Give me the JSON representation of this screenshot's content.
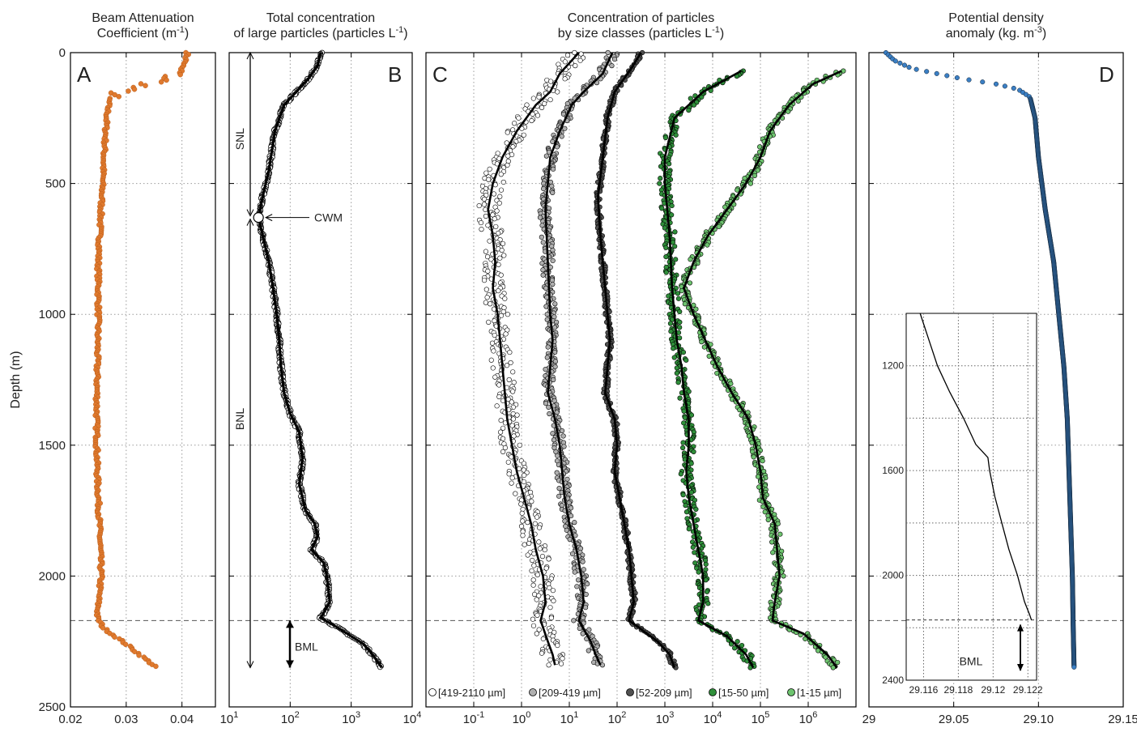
{
  "depth_axis": {
    "label": "Depth (m)",
    "min": 0,
    "max": 2500,
    "ticks": [
      "0",
      "500",
      "1000",
      "1500",
      "2000",
      "2500"
    ]
  },
  "bml_depth": 2170,
  "chart_data": [
    {
      "id": "A",
      "type": "scatter",
      "title": [
        "Beam Attenuation",
        "Coefficient (m",
        "-1",
        ")"
      ],
      "panel_label": "A",
      "xlim": [
        0.02,
        0.046
      ],
      "xscale": "linear",
      "xticks": [
        "0.02",
        "0.03",
        "0.04"
      ],
      "color": "#e07a2e",
      "profile": [
        [
          0,
          0.041
        ],
        [
          40,
          0.0405
        ],
        [
          80,
          0.039
        ],
        [
          110,
          0.036
        ],
        [
          140,
          0.03
        ],
        [
          170,
          0.027
        ],
        [
          250,
          0.0265
        ],
        [
          400,
          0.026
        ],
        [
          600,
          0.0255
        ],
        [
          800,
          0.025
        ],
        [
          1000,
          0.025
        ],
        [
          1200,
          0.0248
        ],
        [
          1400,
          0.0247
        ],
        [
          1600,
          0.0248
        ],
        [
          1800,
          0.0252
        ],
        [
          2000,
          0.0255
        ],
        [
          2100,
          0.025
        ],
        [
          2160,
          0.0248
        ],
        [
          2200,
          0.026
        ],
        [
          2260,
          0.03
        ],
        [
          2310,
          0.033
        ],
        [
          2350,
          0.0355
        ]
      ]
    },
    {
      "id": "B",
      "type": "line",
      "title": [
        "Total concentration",
        "of large particles (particles L",
        "-1",
        ")"
      ],
      "panel_label": "B",
      "xlim": [
        1,
        4
      ],
      "xscale": "log10",
      "xticks": [
        "1",
        "2",
        "3",
        "4"
      ],
      "color": "#000000",
      "profile": [
        [
          0,
          2.5
        ],
        [
          50,
          2.45
        ],
        [
          100,
          2.3
        ],
        [
          150,
          2.1
        ],
        [
          200,
          1.9
        ],
        [
          300,
          1.75
        ],
        [
          450,
          1.65
        ],
        [
          550,
          1.55
        ],
        [
          630,
          1.48
        ],
        [
          700,
          1.55
        ],
        [
          800,
          1.65
        ],
        [
          900,
          1.72
        ],
        [
          1000,
          1.78
        ],
        [
          1100,
          1.82
        ],
        [
          1200,
          1.85
        ],
        [
          1300,
          1.9
        ],
        [
          1380,
          2.0
        ],
        [
          1450,
          2.15
        ],
        [
          1550,
          2.2
        ],
        [
          1650,
          2.15
        ],
        [
          1750,
          2.25
        ],
        [
          1800,
          2.4
        ],
        [
          1850,
          2.45
        ],
        [
          1900,
          2.35
        ],
        [
          1950,
          2.55
        ],
        [
          2000,
          2.6
        ],
        [
          2100,
          2.65
        ],
        [
          2160,
          2.5
        ],
        [
          2200,
          2.8
        ],
        [
          2260,
          3.2
        ],
        [
          2300,
          3.35
        ],
        [
          2350,
          3.5
        ]
      ],
      "annotations": {
        "cwm": {
          "label": "CWM",
          "depth": 630,
          "value": 1.48
        },
        "layers": [
          {
            "label": "SNL",
            "from": 0,
            "to": 630
          },
          {
            "label": "BNL",
            "from": 630,
            "to": 2350
          },
          {
            "label": "BML",
            "from": 2170,
            "to": 2350
          }
        ]
      }
    },
    {
      "id": "C",
      "type": "line",
      "title": [
        "Concentration of particles",
        "by size classes (particles L",
        "-1",
        ")"
      ],
      "panel_label": "C",
      "xlim": [
        -2,
        7
      ],
      "xscale": "log10",
      "xticks": [
        "-1",
        "0",
        "1",
        "2",
        "3",
        "4",
        "5",
        "6"
      ],
      "series": [
        {
          "name": "[419-2110 µm]",
          "fill": "#ffffff",
          "profile": [
            [
              0,
              1.2
            ],
            [
              80,
              0.8
            ],
            [
              150,
              0.6
            ],
            [
              200,
              0.3
            ],
            [
              300,
              -0.1
            ],
            [
              400,
              -0.4
            ],
            [
              500,
              -0.6
            ],
            [
              600,
              -0.7
            ],
            [
              700,
              -0.6
            ],
            [
              800,
              -0.55
            ],
            [
              900,
              -0.6
            ],
            [
              1000,
              -0.5
            ],
            [
              1100,
              -0.45
            ],
            [
              1200,
              -0.4
            ],
            [
              1300,
              -0.35
            ],
            [
              1400,
              -0.3
            ],
            [
              1500,
              -0.2
            ],
            [
              1600,
              -0.1
            ],
            [
              1700,
              0.05
            ],
            [
              1800,
              0.2
            ],
            [
              1900,
              0.3
            ],
            [
              2000,
              0.45
            ],
            [
              2100,
              0.5
            ],
            [
              2170,
              0.4
            ],
            [
              2250,
              0.55
            ],
            [
              2300,
              0.65
            ],
            [
              2340,
              0.7
            ]
          ]
        },
        {
          "name": "[209-419 µm]",
          "fill": "#b0b0b0",
          "profile": [
            [
              0,
              1.9
            ],
            [
              80,
              1.7
            ],
            [
              150,
              1.3
            ],
            [
              200,
              1.05
            ],
            [
              300,
              0.8
            ],
            [
              400,
              0.6
            ],
            [
              500,
              0.55
            ],
            [
              600,
              0.5
            ],
            [
              800,
              0.55
            ],
            [
              1000,
              0.6
            ],
            [
              1100,
              0.65
            ],
            [
              1200,
              0.6
            ],
            [
              1300,
              0.55
            ],
            [
              1400,
              0.7
            ],
            [
              1500,
              0.8
            ],
            [
              1600,
              0.85
            ],
            [
              1700,
              0.9
            ],
            [
              1800,
              1.0
            ],
            [
              1900,
              1.15
            ],
            [
              2000,
              1.25
            ],
            [
              2100,
              1.3
            ],
            [
              2170,
              1.2
            ],
            [
              2250,
              1.45
            ],
            [
              2300,
              1.55
            ],
            [
              2340,
              1.65
            ]
          ]
        },
        {
          "name": "[52-209 µm]",
          "fill": "#505050",
          "profile": [
            [
              0,
              2.5
            ],
            [
              60,
              2.3
            ],
            [
              150,
              1.95
            ],
            [
              250,
              1.8
            ],
            [
              400,
              1.7
            ],
            [
              550,
              1.6
            ],
            [
              700,
              1.65
            ],
            [
              900,
              1.75
            ],
            [
              1000,
              1.8
            ],
            [
              1100,
              1.85
            ],
            [
              1200,
              1.8
            ],
            [
              1300,
              1.75
            ],
            [
              1400,
              1.95
            ],
            [
              1500,
              2.0
            ],
            [
              1600,
              1.95
            ],
            [
              1700,
              2.05
            ],
            [
              1800,
              2.15
            ],
            [
              1900,
              2.25
            ],
            [
              2000,
              2.3
            ],
            [
              2100,
              2.35
            ],
            [
              2170,
              2.25
            ],
            [
              2250,
              2.85
            ],
            [
              2300,
              3.1
            ],
            [
              2350,
              3.2
            ]
          ]
        },
        {
          "name": "[15-50 µm]",
          "fill": "#2f8f3a",
          "profile": [
            [
              70,
              4.6
            ],
            [
              150,
              3.8
            ],
            [
              250,
              3.2
            ],
            [
              400,
              3.0
            ],
            [
              500,
              3.0
            ],
            [
              700,
              3.1
            ],
            [
              900,
              3.15
            ],
            [
              1000,
              3.2
            ],
            [
              1100,
              3.25
            ],
            [
              1200,
              3.35
            ],
            [
              1300,
              3.4
            ],
            [
              1400,
              3.5
            ],
            [
              1500,
              3.5
            ],
            [
              1600,
              3.45
            ],
            [
              1700,
              3.5
            ],
            [
              1800,
              3.6
            ],
            [
              1900,
              3.7
            ],
            [
              2000,
              3.8
            ],
            [
              2100,
              3.8
            ],
            [
              2170,
              3.7
            ],
            [
              2230,
              4.3
            ],
            [
              2300,
              4.7
            ],
            [
              2350,
              4.85
            ]
          ]
        },
        {
          "name": "[1-15 µm]",
          "fill": "#6ec46f",
          "profile": [
            [
              70,
              6.7
            ],
            [
              120,
              6.1
            ],
            [
              200,
              5.6
            ],
            [
              300,
              5.2
            ],
            [
              400,
              5.0
            ],
            [
              500,
              4.7
            ],
            [
              600,
              4.3
            ],
            [
              700,
              3.9
            ],
            [
              800,
              3.6
            ],
            [
              900,
              3.4
            ],
            [
              1000,
              3.6
            ],
            [
              1100,
              3.85
            ],
            [
              1200,
              4.1
            ],
            [
              1300,
              4.4
            ],
            [
              1400,
              4.75
            ],
            [
              1500,
              4.9
            ],
            [
              1600,
              5.0
            ],
            [
              1700,
              5.05
            ],
            [
              1800,
              5.3
            ],
            [
              1900,
              5.35
            ],
            [
              2000,
              5.4
            ],
            [
              2100,
              5.3
            ],
            [
              2170,
              5.25
            ],
            [
              2220,
              5.9
            ],
            [
              2300,
              6.4
            ],
            [
              2350,
              6.6
            ]
          ]
        }
      ]
    },
    {
      "id": "D",
      "type": "scatter",
      "title": [
        "Potential density",
        "anomaly (kg. m",
        "-3",
        ")"
      ],
      "panel_label": "D",
      "xlim": [
        29.0,
        29.15
      ],
      "xscale": "linear",
      "xticks": [
        "29",
        "29.05",
        "29.10",
        "29.15"
      ],
      "color": "#2e6fb0",
      "profile": [
        [
          0,
          29.01
        ],
        [
          30,
          29.015
        ],
        [
          60,
          29.025
        ],
        [
          80,
          29.04
        ],
        [
          100,
          29.055
        ],
        [
          120,
          29.075
        ],
        [
          140,
          29.088
        ],
        [
          170,
          29.095
        ],
        [
          250,
          29.098
        ],
        [
          400,
          29.1
        ],
        [
          600,
          29.104
        ],
        [
          800,
          29.109
        ],
        [
          1000,
          29.112
        ],
        [
          1200,
          29.115
        ],
        [
          1400,
          29.117
        ],
        [
          1600,
          29.118
        ],
        [
          1800,
          29.119
        ],
        [
          2000,
          29.12
        ],
        [
          2200,
          29.1205
        ],
        [
          2350,
          29.121
        ]
      ],
      "inset": {
        "xlim": [
          29.115,
          29.1225
        ],
        "ylim": [
          1000,
          2400
        ],
        "xticks": [
          "29.116",
          "29.118",
          "29.12",
          "29.122"
        ],
        "yticks": [
          "1200",
          "1600",
          "2000",
          "2400"
        ],
        "label": "BML",
        "bml_depth": 2170,
        "profile": [
          [
            1000,
            29.1158
          ],
          [
            1100,
            29.1163
          ],
          [
            1200,
            29.1168
          ],
          [
            1300,
            29.1175
          ],
          [
            1400,
            29.1183
          ],
          [
            1500,
            29.119
          ],
          [
            1550,
            29.1197
          ],
          [
            1600,
            29.1198
          ],
          [
            1700,
            29.1201
          ],
          [
            1800,
            29.1205
          ],
          [
            1900,
            29.1209
          ],
          [
            2000,
            29.1214
          ],
          [
            2100,
            29.1218
          ],
          [
            2150,
            29.1221
          ],
          [
            2170,
            29.1222
          ]
        ]
      }
    }
  ]
}
